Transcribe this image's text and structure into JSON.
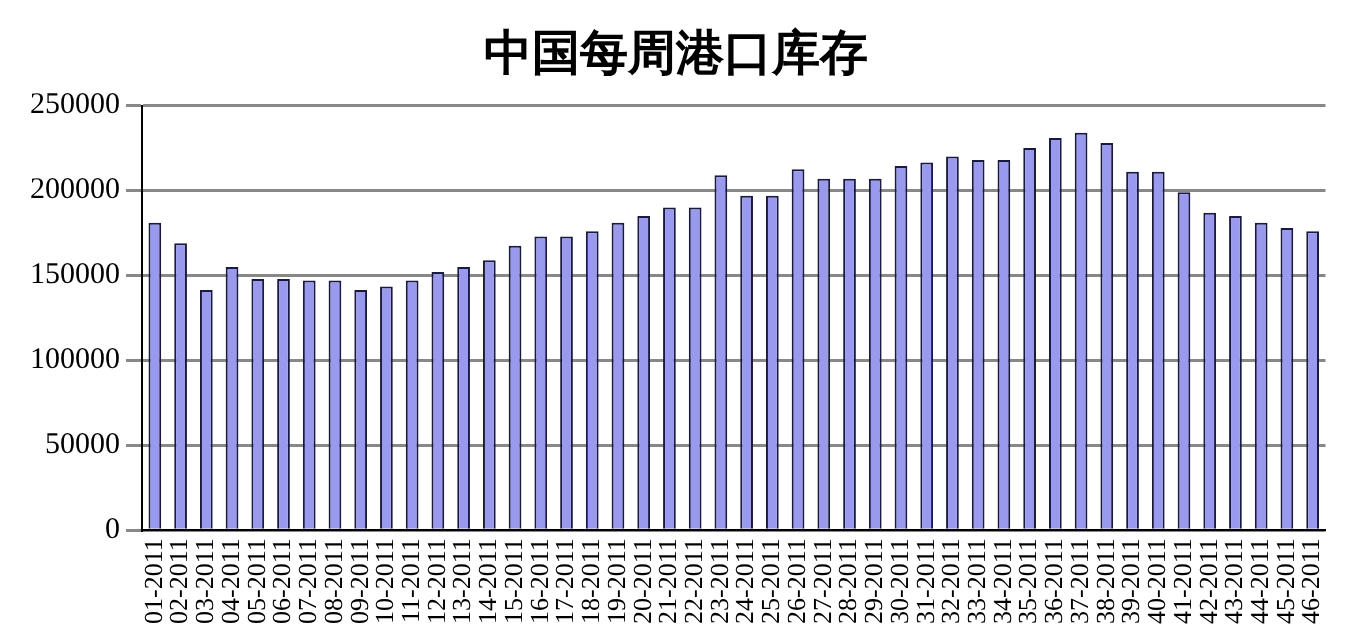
{
  "chart_data": {
    "type": "bar",
    "title": "中国每周港口库存",
    "categories": [
      "01-2011",
      "02-2011",
      "03-2011",
      "04-2011",
      "05-2011",
      "06-2011",
      "07-2011",
      "08-2011",
      "09-2011",
      "10-2011",
      "11-2011",
      "12-2011",
      "13-2011",
      "14-2011",
      "15-2011",
      "16-2011",
      "17-2011",
      "18-2011",
      "19-2011",
      "20-2011",
      "21-2011",
      "22-2011",
      "23-2011",
      "24-2011",
      "25-2011",
      "26-2011",
      "27-2011",
      "28-2011",
      "29-2011",
      "30-2011",
      "31-2011",
      "32-2011",
      "33-2011",
      "34-2011",
      "35-2011",
      "36-2011",
      "37-2011",
      "38-2011",
      "39-2011",
      "40-2011",
      "41-2011",
      "42-2011",
      "43-2011",
      "44-2011",
      "45-2011",
      "46-2011"
    ],
    "values": [
      181000,
      169000,
      141500,
      155000,
      148000,
      148000,
      147000,
      147000,
      141500,
      143500,
      147000,
      152000,
      155000,
      159000,
      167500,
      173000,
      173000,
      176000,
      181000,
      185000,
      190000,
      190000,
      209000,
      197000,
      197000,
      212500,
      207000,
      207000,
      207000,
      214500,
      216500,
      220000,
      218000,
      218000,
      225000,
      231000,
      234000,
      228000,
      211000,
      211000,
      199000,
      187000,
      185000,
      181000,
      178000,
      176000
    ],
    "color": "#9999ee",
    "ylim": [
      0,
      250000
    ],
    "yticks": [
      0,
      50000,
      100000,
      150000,
      200000,
      250000
    ],
    "grid": "y"
  }
}
